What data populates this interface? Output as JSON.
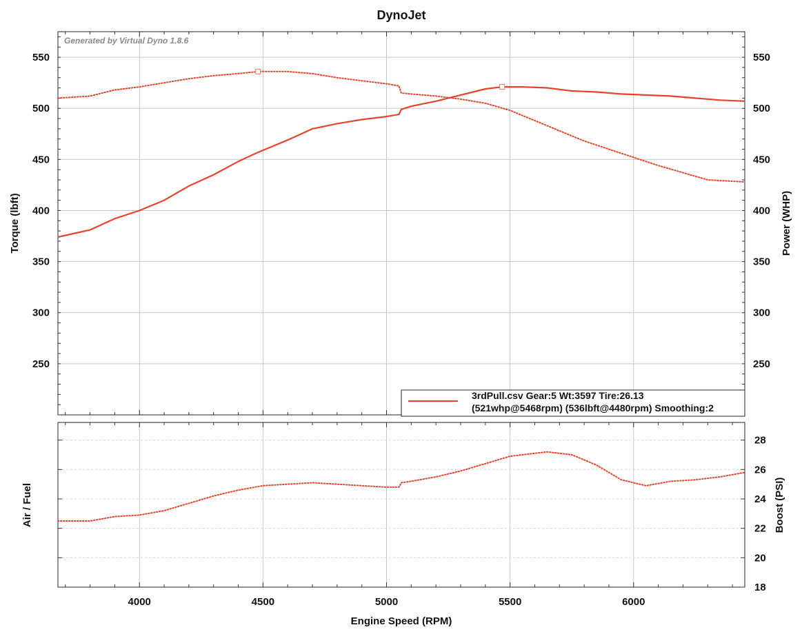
{
  "chart_data": {
    "type": "line",
    "title": "DynoJet",
    "watermark": "Generated by Virtual Dyno 1.8.6",
    "xlabel": "Engine Speed (RPM)",
    "xlim": [
      3670,
      6450
    ],
    "xticks": [
      4000,
      4500,
      5000,
      5500,
      6000
    ],
    "grid": true,
    "line_color": "#e8432a",
    "top_panel": {
      "ylabel_left": "Torque (lbft)",
      "ylabel_right": "Power (WHP)",
      "ylim": [
        200,
        575
      ],
      "yticks": [
        250,
        300,
        350,
        400,
        450,
        500,
        550
      ],
      "series": [
        {
          "name": "3rdPull.csv Gear:5 Wt:3597 Tire:26.13",
          "axis": "right",
          "style": "solid",
          "x": [
            3670,
            3800,
            3900,
            4000,
            4100,
            4200,
            4300,
            4400,
            4480,
            4600,
            4700,
            4800,
            4900,
            5000,
            5050,
            5060,
            5100,
            5200,
            5300,
            5400,
            5468,
            5550,
            5650,
            5750,
            5850,
            5950,
            6050,
            6150,
            6250,
            6350,
            6450
          ],
          "values": [
            374,
            381,
            392,
            400,
            410,
            424,
            435,
            448,
            457,
            469,
            480,
            485,
            489,
            492,
            494,
            499,
            502,
            507,
            513,
            519,
            521,
            521,
            520,
            517,
            516,
            514,
            513,
            512,
            510,
            508,
            507
          ]
        },
        {
          "name": "(521whp@5468rpm) (536lbft@4480rpm) Smoothing:2",
          "axis": "left",
          "style": "dotted",
          "x": [
            3670,
            3800,
            3900,
            4000,
            4100,
            4200,
            4300,
            4400,
            4480,
            4600,
            4700,
            4800,
            4900,
            5000,
            5050,
            5060,
            5100,
            5200,
            5300,
            5400,
            5500,
            5600,
            5700,
            5800,
            5900,
            6000,
            6100,
            6200,
            6300,
            6450
          ],
          "values": [
            510,
            512,
            518,
            521,
            525,
            529,
            532,
            534,
            536,
            536,
            534,
            530,
            527,
            524,
            522,
            515,
            514,
            512,
            509,
            505,
            498,
            488,
            478,
            468,
            460,
            452,
            444,
            437,
            430,
            428
          ]
        }
      ],
      "markers": [
        {
          "series": 1,
          "x": 4480,
          "y": 536
        },
        {
          "series": 0,
          "x": 5468,
          "y": 521
        }
      ],
      "legend": {
        "placement": "bottom-right",
        "lines": [
          "3rdPull.csv Gear:5 Wt:3597 Tire:26.13",
          "(521whp@5468rpm) (536lbft@4480rpm) Smoothing:2"
        ]
      }
    },
    "bottom_panel": {
      "ylabel_left": "Air / Fuel",
      "ylabel_right": "Boost (PSI)",
      "ylim": [
        18,
        29.2
      ],
      "yticks": [
        18,
        20,
        22,
        24,
        26,
        28
      ],
      "series": [
        {
          "name": "",
          "axis": "right",
          "style": "dotted",
          "x": [
            3670,
            3800,
            3900,
            4000,
            4100,
            4200,
            4300,
            4400,
            4500,
            4600,
            4700,
            4800,
            4900,
            5000,
            5050,
            5060,
            5100,
            5200,
            5300,
            5400,
            5500,
            5600,
            5650,
            5750,
            5850,
            5950,
            6050,
            6150,
            6250,
            6350,
            6450
          ],
          "values": [
            22.5,
            22.5,
            22.8,
            22.9,
            23.2,
            23.7,
            24.2,
            24.6,
            24.9,
            25.0,
            25.1,
            25.0,
            24.9,
            24.8,
            24.8,
            25.1,
            25.2,
            25.5,
            25.9,
            26.4,
            26.9,
            27.1,
            27.2,
            27.0,
            26.3,
            25.3,
            24.9,
            25.2,
            25.3,
            25.5,
            25.8
          ]
        }
      ]
    }
  }
}
